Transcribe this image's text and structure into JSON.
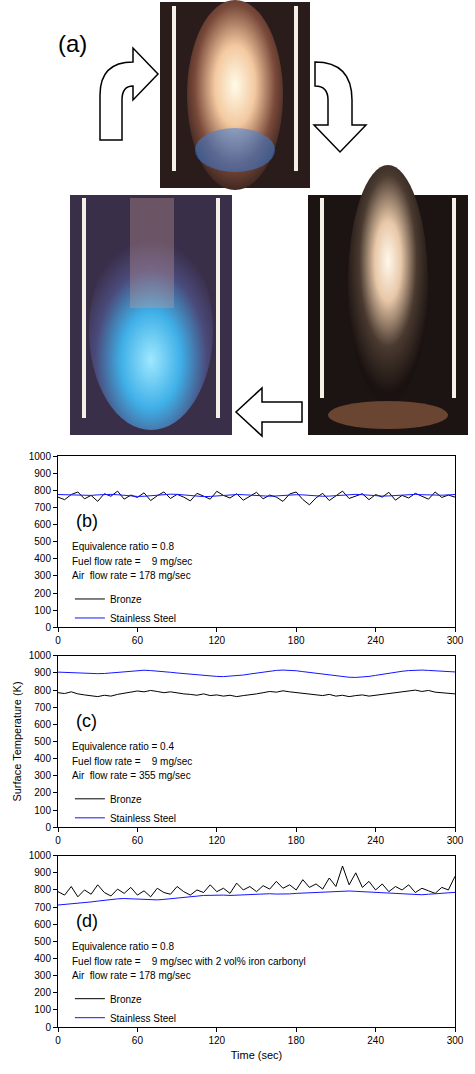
{
  "panel_a": {
    "label": "(a)"
  },
  "chart_data": [
    {
      "type": "line",
      "panel_label": "(b)",
      "annotations": [
        "Equivalence ratio = 0.8",
        "Fuel flow rate =    9 mg/sec",
        "Air  flow rate = 178 mg/sec"
      ],
      "x": [
        0,
        5,
        10,
        15,
        20,
        25,
        30,
        35,
        40,
        45,
        50,
        55,
        60,
        65,
        70,
        75,
        80,
        85,
        90,
        95,
        100,
        105,
        110,
        115,
        120,
        125,
        130,
        135,
        140,
        145,
        150,
        155,
        160,
        165,
        170,
        175,
        180,
        185,
        190,
        195,
        200,
        205,
        210,
        215,
        220,
        225,
        230,
        235,
        240,
        245,
        250,
        255,
        260,
        265,
        270,
        275,
        280,
        285,
        290,
        295,
        300
      ],
      "series": [
        {
          "name": "Bronze",
          "color": "#000000",
          "values": [
            760,
            745,
            775,
            790,
            750,
            770,
            735,
            780,
            765,
            795,
            748,
            772,
            758,
            785,
            740,
            768,
            790,
            752,
            776,
            760,
            738,
            782,
            766,
            748,
            794,
            770,
            755,
            780,
            742,
            765,
            788,
            750,
            772,
            760,
            735,
            778,
            790,
            746,
            715,
            756,
            782,
            740,
            770,
            795,
            752,
            766,
            780,
            745,
            775,
            760,
            788,
            742,
            770,
            755,
            782,
            765,
            748,
            790,
            758,
            772,
            760
          ]
        },
        {
          "name": "Stainless Steel",
          "color": "#1515ff",
          "values": [
            775,
            774,
            772,
            770,
            768,
            770,
            773,
            775,
            776,
            774,
            770,
            766,
            764,
            765,
            768,
            772,
            775,
            777,
            776,
            772,
            768,
            765,
            763,
            764,
            767,
            770,
            773,
            775,
            774,
            771,
            768,
            766,
            765,
            767,
            770,
            772,
            774,
            773,
            770,
            767,
            765,
            766,
            769,
            772,
            775,
            776,
            774,
            771,
            768,
            766,
            767,
            770,
            773,
            775,
            776,
            774,
            772,
            770,
            771,
            773,
            775
          ]
        }
      ],
      "xlim": [
        0,
        300
      ],
      "xticks": [
        0,
        60,
        120,
        180,
        240,
        300
      ],
      "ylim": [
        0,
        1000
      ],
      "yticks": [
        0,
        100,
        200,
        300,
        400,
        500,
        600,
        700,
        800,
        900,
        1000
      ],
      "legend": "lower left",
      "grid": false
    },
    {
      "type": "line",
      "panel_label": "(c)",
      "annotations": [
        "Equivalence ratio = 0.4",
        "Fuel flow rate =    9 mg/sec",
        "Air  flow rate = 355 mg/sec"
      ],
      "ylabel": "Surface Temperature (K)",
      "x": [
        0,
        5,
        10,
        15,
        20,
        25,
        30,
        35,
        40,
        45,
        50,
        55,
        60,
        65,
        70,
        75,
        80,
        85,
        90,
        95,
        100,
        105,
        110,
        115,
        120,
        125,
        130,
        135,
        140,
        145,
        150,
        155,
        160,
        165,
        170,
        175,
        180,
        185,
        190,
        195,
        200,
        205,
        210,
        215,
        220,
        225,
        230,
        235,
        240,
        245,
        250,
        255,
        260,
        265,
        270,
        275,
        280,
        285,
        290,
        295,
        300
      ],
      "series": [
        {
          "name": "Bronze",
          "color": "#000000",
          "values": [
            785,
            780,
            790,
            778,
            772,
            768,
            762,
            770,
            765,
            775,
            782,
            788,
            795,
            790,
            798,
            792,
            785,
            790,
            783,
            778,
            775,
            770,
            778,
            768,
            772,
            765,
            770,
            762,
            768,
            772,
            778,
            785,
            792,
            788,
            796,
            790,
            785,
            780,
            775,
            772,
            768,
            775,
            765,
            770,
            762,
            768,
            772,
            765,
            770,
            776,
            780,
            785,
            790,
            795,
            800,
            792,
            798,
            788,
            785,
            780,
            778
          ]
        },
        {
          "name": "Stainless Steel",
          "color": "#1515ff",
          "values": [
            905,
            903,
            904,
            902,
            900,
            898,
            896,
            897,
            900,
            904,
            908,
            912,
            915,
            916,
            914,
            912,
            908,
            904,
            900,
            896,
            892,
            888,
            885,
            882,
            880,
            879,
            881,
            884,
            888,
            894,
            900,
            906,
            911,
            915,
            917,
            916,
            913,
            908,
            903,
            898,
            892,
            887,
            882,
            878,
            875,
            874,
            876,
            880,
            886,
            893,
            899,
            905,
            910,
            914,
            916,
            917,
            915,
            912,
            910,
            908,
            906
          ]
        }
      ],
      "xlim": [
        0,
        300
      ],
      "xticks": [
        0,
        60,
        120,
        180,
        240,
        300
      ],
      "ylim": [
        0,
        1000
      ],
      "yticks": [
        0,
        100,
        200,
        300,
        400,
        500,
        600,
        700,
        800,
        900,
        1000
      ],
      "legend": "lower left",
      "grid": false
    },
    {
      "type": "line",
      "panel_label": "(d)",
      "annotations": [
        "Equivalence ratio = 0.8",
        "Fuel flow rate =    9 mg/sec with 2 vol% iron carbonyl",
        "Air  flow rate = 178 mg/sec"
      ],
      "xlabel": "Time (sec)",
      "x": [
        0,
        5,
        10,
        15,
        20,
        25,
        30,
        35,
        40,
        45,
        50,
        55,
        60,
        65,
        70,
        75,
        80,
        85,
        90,
        95,
        100,
        105,
        110,
        115,
        120,
        125,
        130,
        135,
        140,
        145,
        150,
        155,
        160,
        165,
        170,
        175,
        180,
        185,
        190,
        195,
        200,
        205,
        210,
        215,
        220,
        225,
        230,
        235,
        240,
        245,
        250,
        255,
        260,
        265,
        270,
        275,
        280,
        285,
        290,
        295,
        300
      ],
      "series": [
        {
          "name": "Bronze",
          "color": "#000000",
          "values": [
            790,
            770,
            820,
            760,
            800,
            775,
            830,
            785,
            765,
            805,
            780,
            815,
            770,
            795,
            760,
            810,
            785,
            775,
            820,
            790,
            770,
            800,
            785,
            830,
            790,
            810,
            780,
            840,
            800,
            820,
            790,
            825,
            805,
            850,
            810,
            830,
            800,
            860,
            815,
            835,
            805,
            870,
            820,
            940,
            830,
            900,
            815,
            850,
            800,
            835,
            790,
            820,
            800,
            830,
            785,
            810,
            795,
            780,
            815,
            800,
            880
          ]
        },
        {
          "name": "Stainless Steel",
          "color": "#1515ff",
          "values": [
            712,
            715,
            718,
            722,
            726,
            730,
            735,
            740,
            744,
            748,
            750,
            748,
            745,
            742,
            740,
            742,
            745,
            748,
            752,
            756,
            760,
            764,
            768,
            770,
            772,
            770,
            768,
            770,
            773,
            776,
            778,
            780,
            778,
            776,
            775,
            777,
            780,
            782,
            784,
            786,
            788,
            790,
            792,
            793,
            794,
            792,
            790,
            788,
            786,
            784,
            782,
            780,
            778,
            776,
            774,
            772,
            775,
            778,
            780,
            784,
            786
          ]
        }
      ],
      "xlim": [
        0,
        300
      ],
      "xticks": [
        0,
        60,
        120,
        180,
        240,
        300
      ],
      "ylim": [
        0,
        1000
      ],
      "yticks": [
        0,
        100,
        200,
        300,
        400,
        500,
        600,
        700,
        800,
        900,
        1000
      ],
      "legend": "lower left",
      "grid": false
    }
  ]
}
